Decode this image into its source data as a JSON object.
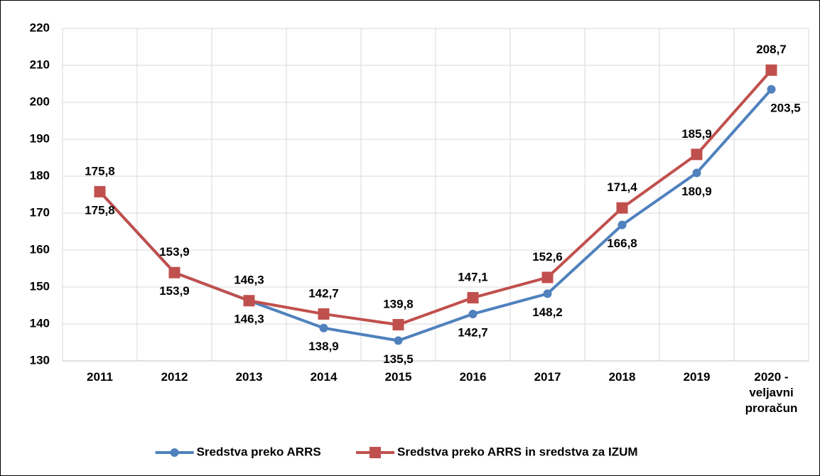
{
  "chart_data": {
    "type": "line",
    "categories": [
      "2011",
      "2012",
      "2013",
      "2014",
      "2015",
      "2016",
      "2017",
      "2018",
      "2019",
      "2020 - veljavni proračun"
    ],
    "series": [
      {
        "name": "Sredstva preko ARRS",
        "color": "#4f81bd",
        "marker": "circle",
        "values": [
          175.8,
          153.9,
          146.3,
          138.9,
          135.5,
          142.7,
          148.2,
          166.8,
          180.9,
          203.5
        ],
        "value_labels": [
          "175,8",
          "153,9",
          "146,3",
          "138,9",
          "135,5",
          "142,7",
          "148,2",
          "166,8",
          "180,9",
          "203,5"
        ]
      },
      {
        "name": "Sredstva preko ARRS in sredstva za IZUM",
        "color": "#c0504d",
        "marker": "square",
        "values": [
          175.8,
          153.9,
          146.3,
          142.7,
          139.8,
          147.1,
          152.6,
          171.4,
          185.9,
          208.7
        ],
        "value_labels": [
          "175,8",
          "153,9",
          "146,3",
          "142,7",
          "139,8",
          "147,1",
          "152,6",
          "171,4",
          "185,9",
          "208,7"
        ]
      }
    ],
    "ylim": [
      130,
      220
    ],
    "yticks": [
      130,
      140,
      150,
      160,
      170,
      180,
      190,
      200,
      210,
      220
    ],
    "grid": true,
    "legend": "bottom"
  }
}
